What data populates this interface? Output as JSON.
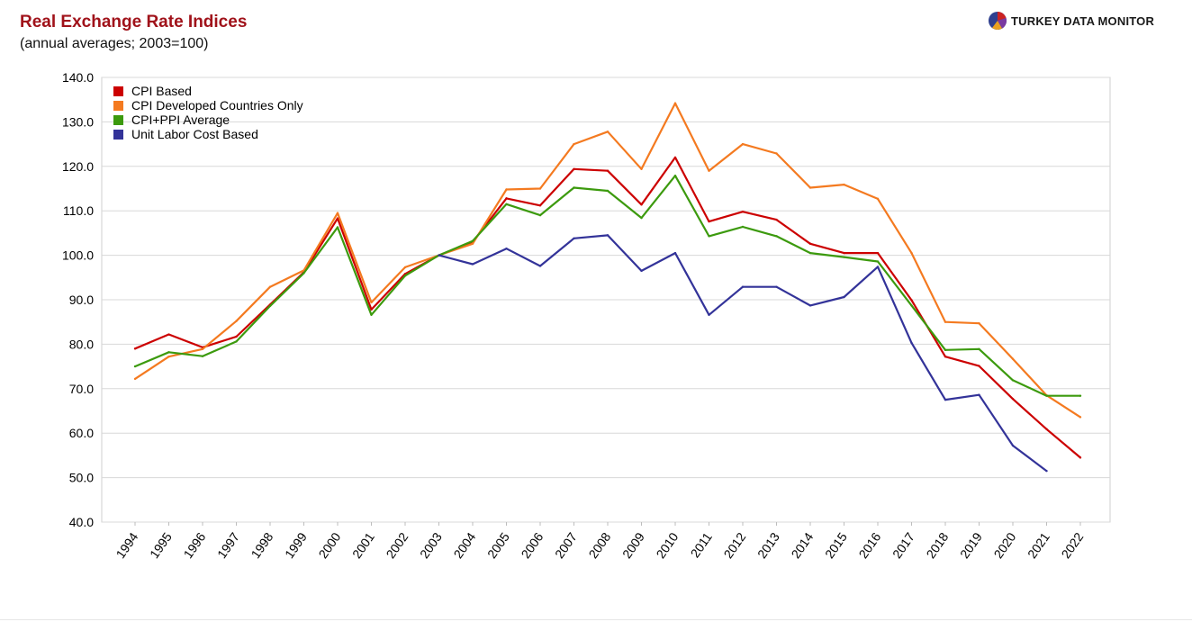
{
  "header": {
    "title": "Real Exchange Rate Indices",
    "subtitle": "(annual averages; 2003=100)",
    "brand_light": "TURKEY DATA ",
    "brand_bold": "MONITOR",
    "logo_icon": "pie-chart-logo-icon"
  },
  "chart_data": {
    "type": "line",
    "title": "Real Exchange Rate Indices",
    "subtitle": "(annual averages; 2003=100)",
    "xlabel": "",
    "ylabel": "",
    "ylim": [
      40,
      140
    ],
    "yticks": [
      40,
      50,
      60,
      70,
      80,
      90,
      100,
      110,
      120,
      130,
      140
    ],
    "ytick_labels": [
      "40.0",
      "50.0",
      "60.0",
      "70.0",
      "80.0",
      "90.0",
      "100.0",
      "110.0",
      "120.0",
      "130.0",
      "140.0"
    ],
    "grid": true,
    "legend_position": "top-left",
    "categories": [
      "1994",
      "1995",
      "1996",
      "1997",
      "1998",
      "1999",
      "2000",
      "2001",
      "2002",
      "2003",
      "2004",
      "2005",
      "2006",
      "2007",
      "2008",
      "2009",
      "2010",
      "2011",
      "2012",
      "2013",
      "2014",
      "2015",
      "2016",
      "2017",
      "2018",
      "2019",
      "2020",
      "2021",
      "2022"
    ],
    "series": [
      {
        "name": "CPI Based",
        "color": "#cc0000",
        "values": [
          79.0,
          82.2,
          79.3,
          81.7,
          88.9,
          96.2,
          108.3,
          87.8,
          95.8,
          100.0,
          103.0,
          112.8,
          111.2,
          119.4,
          119.0,
          111.4,
          122.0,
          107.6,
          109.8,
          108.0,
          102.6,
          100.5,
          100.5,
          89.9,
          77.2,
          75.1,
          67.7,
          60.9,
          54.5
        ]
      },
      {
        "name": "CPI Developed Countries Only",
        "color": "#f47a20",
        "values": [
          72.2,
          77.2,
          78.9,
          85.2,
          92.9,
          96.6,
          109.5,
          89.4,
          97.3,
          100.0,
          102.6,
          114.8,
          115.0,
          125.0,
          127.8,
          119.4,
          134.2,
          119.0,
          125.0,
          122.9,
          115.2,
          115.9,
          112.7,
          100.5,
          85.0,
          84.7,
          76.7,
          68.5,
          63.6
        ]
      },
      {
        "name": "CPI+PPI Average",
        "color": "#3c9a0e",
        "values": [
          75.0,
          78.2,
          77.3,
          80.6,
          88.6,
          96.0,
          106.3,
          86.6,
          95.4,
          100.0,
          103.2,
          111.5,
          109.0,
          115.2,
          114.5,
          108.4,
          117.9,
          104.3,
          106.4,
          104.3,
          100.5,
          99.6,
          98.6,
          88.7,
          78.7,
          78.9,
          71.9,
          68.4,
          68.4
        ]
      },
      {
        "name": "Unit Labor Cost Based",
        "color": "#333399",
        "values": [
          null,
          null,
          null,
          null,
          null,
          null,
          null,
          null,
          null,
          100.0,
          98.0,
          101.5,
          97.6,
          103.8,
          104.5,
          96.5,
          100.5,
          86.6,
          92.9,
          92.9,
          88.7,
          90.6,
          97.4,
          80.3,
          67.5,
          68.6,
          57.2,
          51.5,
          null
        ]
      }
    ]
  }
}
